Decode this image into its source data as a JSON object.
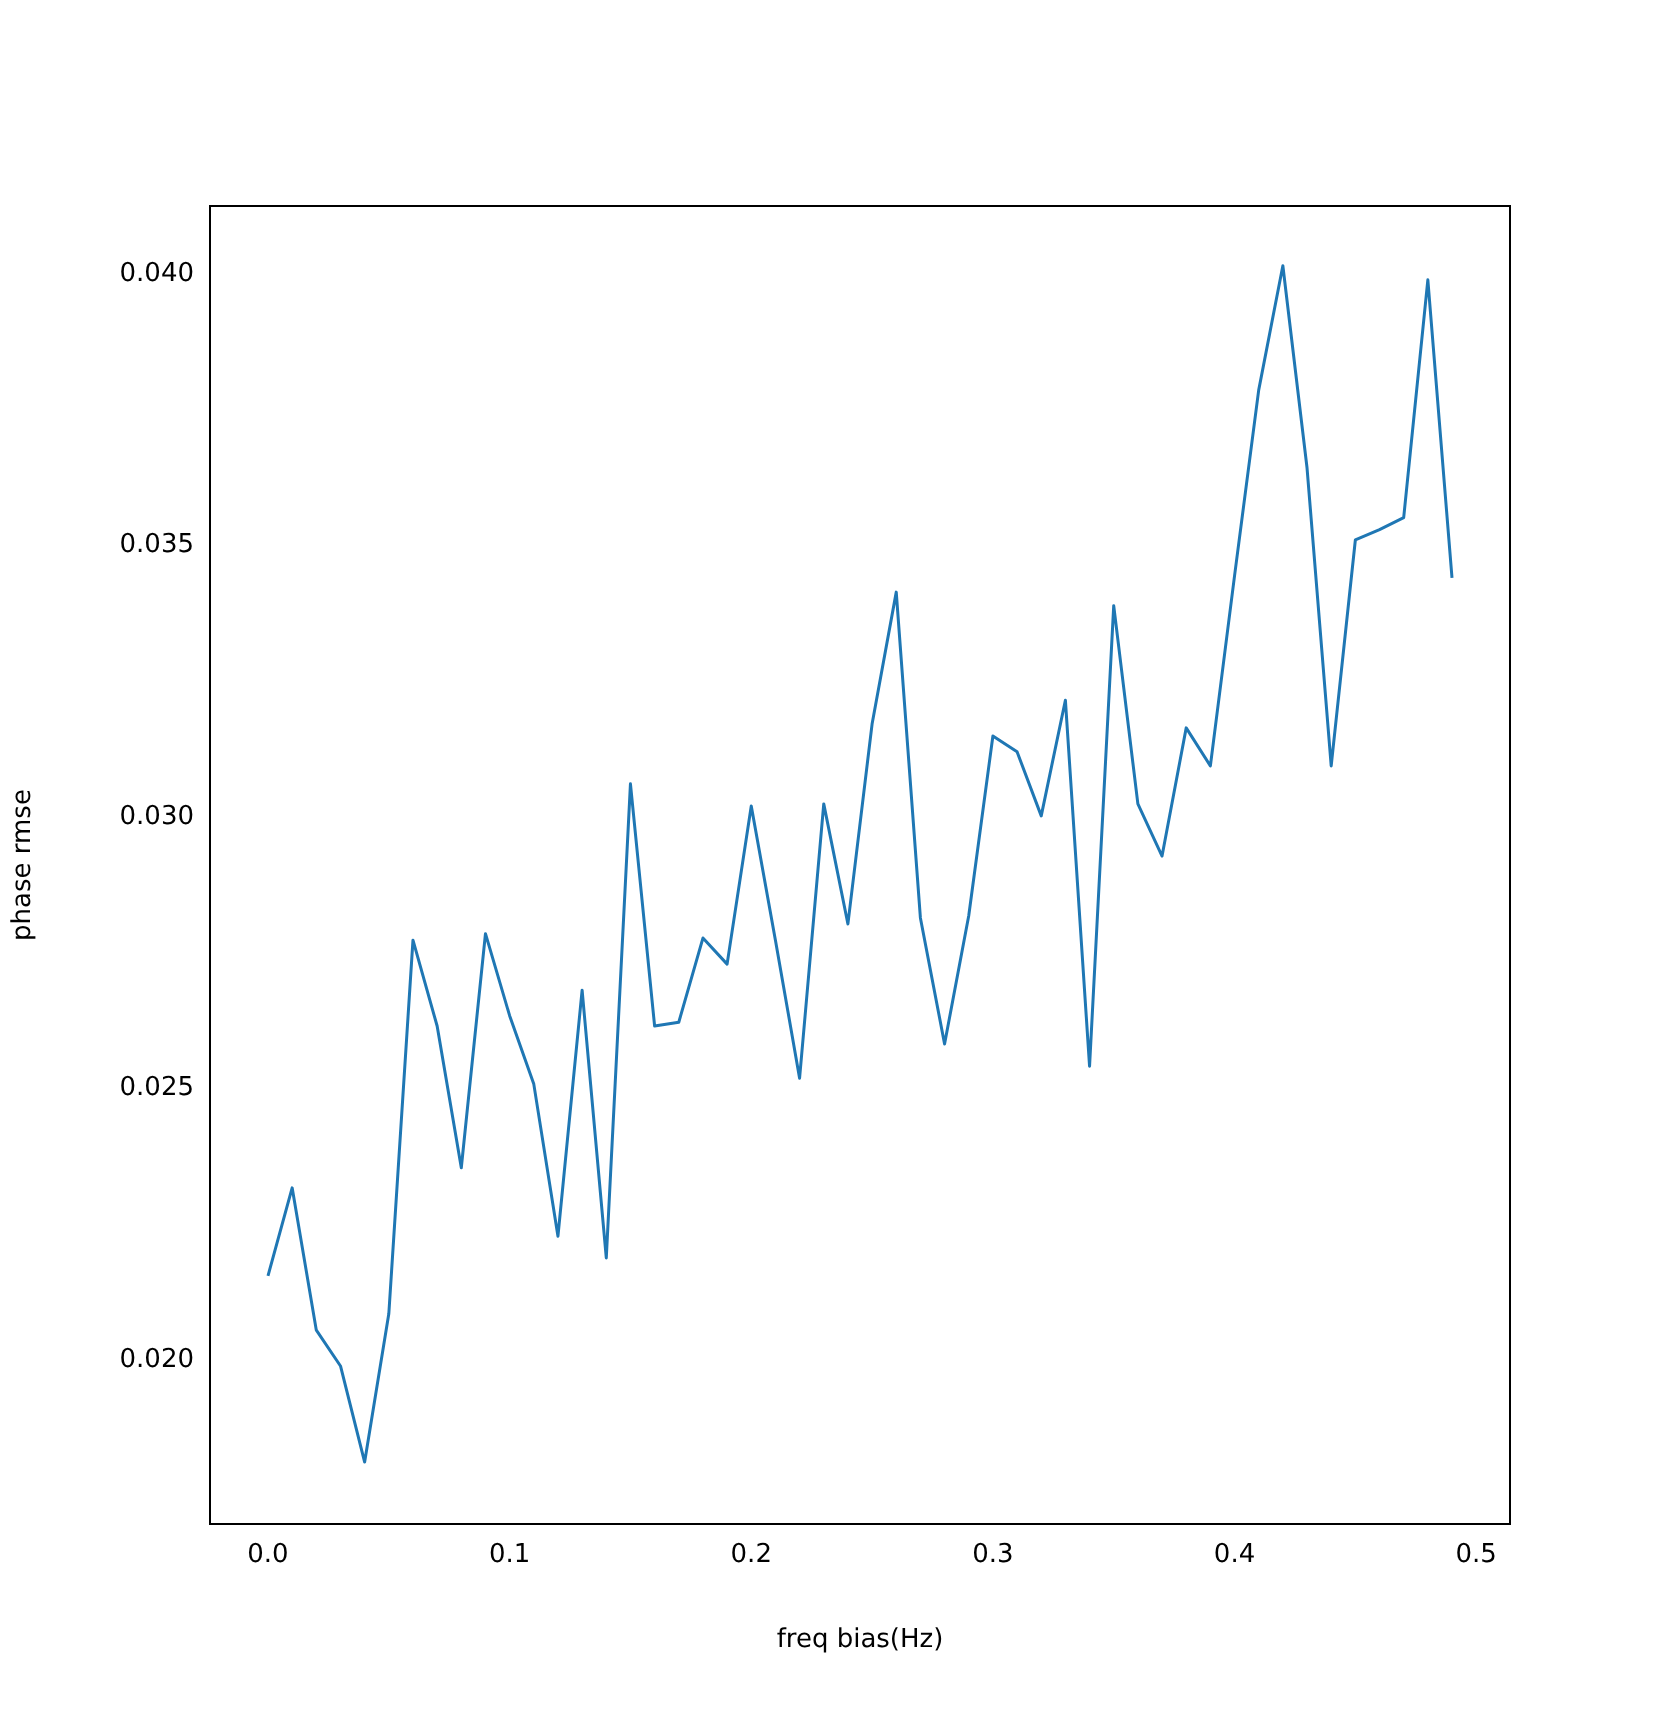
{
  "chart_data": {
    "type": "line",
    "xlabel": "freq bias(Hz)",
    "ylabel": "phase rmse",
    "x": [
      0,
      0.01,
      0.02,
      0.03,
      0.04,
      0.05,
      0.06,
      0.07,
      0.08,
      0.09,
      0.1,
      0.11,
      0.12,
      0.13,
      0.14,
      0.15,
      0.16,
      0.17,
      0.18,
      0.19,
      0.2,
      0.21,
      0.22,
      0.23,
      0.24,
      0.25,
      0.26,
      0.27,
      0.28,
      0.29,
      0.3,
      0.31,
      0.32,
      0.33,
      0.34,
      0.35,
      0.36,
      0.37,
      0.38,
      0.39,
      0.4,
      0.41,
      0.42,
      0.43,
      0.44,
      0.45,
      0.46,
      0.47,
      0.48,
      0.49
    ],
    "series": [
      {
        "color": "#1f77b4",
        "values": [
          0.02155,
          0.02317,
          0.02055,
          0.01989,
          0.01812,
          0.02085,
          0.02773,
          0.02615,
          0.02354,
          0.02785,
          0.02634,
          0.02508,
          0.02228,
          0.02681,
          0.02188,
          0.03061,
          0.02615,
          0.02622,
          0.02777,
          0.02729,
          0.0302,
          0.02773,
          0.02519,
          0.03024,
          0.02803,
          0.03171,
          0.03414,
          0.02814,
          0.02582,
          0.02818,
          0.03149,
          0.0312,
          0.03002,
          0.03215,
          0.02541,
          0.03389,
          0.03024,
          0.02928,
          0.03164,
          0.03094,
          0.03444,
          0.03786,
          0.04015,
          0.03643,
          0.03094,
          0.0351,
          0.03529,
          0.03551,
          0.03989,
          0.0344
        ]
      }
    ],
    "xlim": [
      -0.024,
      0.514
    ],
    "ylim": [
      0.01698,
      0.04125
    ],
    "xticks": [
      {
        "value": 0,
        "label": "0.0"
      },
      0.1,
      0.2,
      0.3,
      0.4,
      0.5
    ],
    "yticks": [
      {
        "value": 0.02,
        "label": "0.020"
      },
      {
        "value": 0.025,
        "label": "0.025"
      },
      {
        "value": 0.03,
        "label": "0.030"
      },
      {
        "value": 0.035,
        "label": "0.035"
      },
      {
        "value": 0.04,
        "label": "0.040"
      }
    ],
    "grid": false,
    "legend": false,
    "marker": "none",
    "line_style": "solid"
  }
}
